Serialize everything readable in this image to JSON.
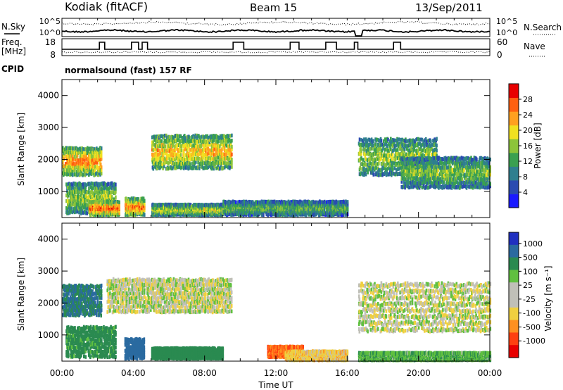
{
  "header": {
    "title": "Kodiak (fitACF)",
    "beam": "Beam 15",
    "date": "13/Sep/2011"
  },
  "top_panels": {
    "nsky_label": "N.Sky",
    "nsearch_label": "N.Search",
    "nsky_ticks": [
      "10^5",
      "10^0"
    ],
    "nsearch_ticks": [
      "10^5",
      "10^0"
    ],
    "freq_label": "Freq.",
    "freq_unit": "[MHz]",
    "freq_ticks": [
      "18",
      "8"
    ],
    "nave_label": "Nave",
    "nave_ticks": [
      "60",
      "0"
    ],
    "cpid_label": "CPID",
    "cpid_text": "normalsound (fast) 157 RF"
  },
  "chart_data": [
    {
      "type": "heatmap",
      "name": "power",
      "ylabel": "Slant Range [km]",
      "xlabel": "",
      "x_ticks": [
        "00:00",
        "04:00",
        "08:00",
        "12:00",
        "16:00",
        "20:00",
        "00:00"
      ],
      "y_ticks": [
        "1000",
        "2000",
        "3000",
        "4000"
      ],
      "xlim": [
        0,
        24
      ],
      "ylim": [
        180,
        4500
      ],
      "colorbar": {
        "label": "Power [dB]",
        "ticks": [
          "4",
          "8",
          "12",
          "16",
          "20",
          "24",
          "28"
        ],
        "colors": [
          "#1a1aff",
          "#2a4bb0",
          "#2f7f8f",
          "#3aa050",
          "#8cc43a",
          "#f0e020",
          "#ffa020",
          "#ff6010",
          "#e80000"
        ]
      },
      "echo_bands": [
        {
          "t": [
            0.0,
            2.2
          ],
          "r": [
            1500,
            2400
          ],
          "level": 0.85
        },
        {
          "t": [
            0.2,
            3.0
          ],
          "r": [
            300,
            1300
          ],
          "level": 0.55
        },
        {
          "t": [
            1.5,
            3.2
          ],
          "r": [
            250,
            700
          ],
          "level": 0.95
        },
        {
          "t": [
            3.5,
            4.6
          ],
          "r": [
            250,
            800
          ],
          "level": 0.9
        },
        {
          "t": [
            5.0,
            9.5
          ],
          "r": [
            1700,
            2800
          ],
          "level": 0.75
        },
        {
          "t": [
            5.0,
            9.0
          ],
          "r": [
            250,
            600
          ],
          "level": 0.6
        },
        {
          "t": [
            9.0,
            16.0
          ],
          "r": [
            250,
            700
          ],
          "level": 0.45
        },
        {
          "t": [
            16.6,
            21.0
          ],
          "r": [
            1500,
            2700
          ],
          "level": 0.55
        },
        {
          "t": [
            19.0,
            24.0
          ],
          "r": [
            1100,
            2100
          ],
          "level": 0.5
        }
      ]
    },
    {
      "type": "heatmap",
      "name": "velocity",
      "ylabel": "Slant Range [km]",
      "xlabel": "Time UT",
      "x_ticks": [
        "00:00",
        "04:00",
        "08:00",
        "12:00",
        "16:00",
        "20:00",
        "00:00"
      ],
      "y_ticks": [
        "1000",
        "2000",
        "3000",
        "4000"
      ],
      "xlim": [
        0,
        24
      ],
      "ylim": [
        180,
        4500
      ],
      "colorbar": {
        "label": "Velocity [m s⁻¹]",
        "ticks": [
          "1000",
          "500",
          "100",
          "25",
          "-25",
          "-100",
          "-500",
          "-1000"
        ],
        "colors": [
          "#2030c0",
          "#2a6aa0",
          "#2a8a50",
          "#60c040",
          "#c0c0b8",
          "#c0c0b8",
          "#f0d040",
          "#ff9020",
          "#ff4010",
          "#e80000"
        ]
      },
      "echo_bands": [
        {
          "t": [
            0.0,
            2.2
          ],
          "r": [
            1600,
            2600
          ],
          "value": 300
        },
        {
          "t": [
            0.2,
            3.0
          ],
          "r": [
            300,
            1300
          ],
          "value": 150
        },
        {
          "t": [
            3.5,
            4.6
          ],
          "r": [
            250,
            900
          ],
          "value": 400
        },
        {
          "t": [
            2.5,
            9.5
          ],
          "r": [
            1700,
            2800
          ],
          "value": 0
        },
        {
          "t": [
            5.0,
            9.0
          ],
          "r": [
            250,
            600
          ],
          "value": 200
        },
        {
          "t": [
            11.5,
            13.5
          ],
          "r": [
            300,
            650
          ],
          "value": -500
        },
        {
          "t": [
            12.5,
            16.0
          ],
          "r": [
            200,
            500
          ],
          "value": -60
        },
        {
          "t": [
            16.6,
            24.0
          ],
          "r": [
            1100,
            2700
          ],
          "value": 0
        },
        {
          "t": [
            16.6,
            24.0
          ],
          "r": [
            200,
            450
          ],
          "value": 80
        }
      ]
    }
  ]
}
